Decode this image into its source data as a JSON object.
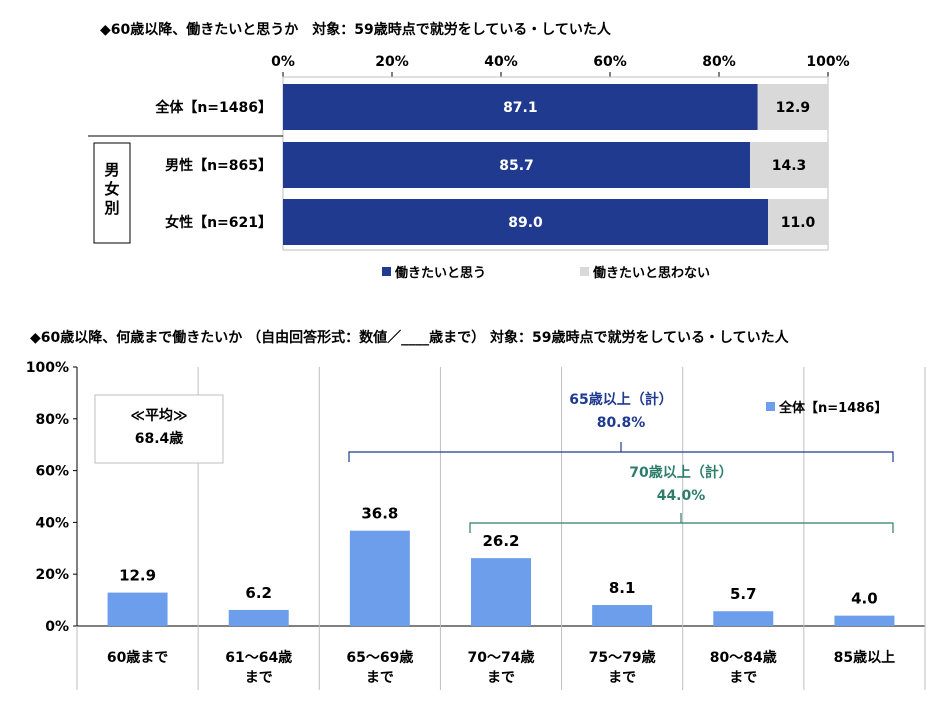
{
  "chart_data": [
    {
      "type": "bar",
      "orientation": "horizontal-stacked",
      "title": "◆60歳以降、働きたいと思うか　対象：59歳時点で就労をしている・していた人",
      "x_ticks": [
        "0%",
        "20%",
        "40%",
        "60%",
        "80%",
        "100%"
      ],
      "xlim": [
        0,
        100
      ],
      "group_label": "男女別",
      "categories": [
        "全体【n=1486】",
        "男性【n=865】",
        "女性【n=621】"
      ],
      "series": [
        {
          "name": "働きたいと思う",
          "values": [
            87.1,
            85.7,
            89.0
          ],
          "labels": [
            "87.1",
            "85.7",
            "89.0"
          ],
          "color": "#1F3A8F"
        },
        {
          "name": "働きたいと思わない",
          "values": [
            12.9,
            14.3,
            11.0
          ],
          "labels": [
            "12.9",
            "14.3",
            "11.0"
          ],
          "color": "#D9D9D9"
        }
      ],
      "legend_position": "bottom"
    },
    {
      "type": "bar",
      "title": "◆60歳以降、何歳まで働きたいか （自由回答形式：数値／____歳まで） 対象：59歳時点で就労をしている・していた人",
      "y_ticks": [
        "0%",
        "20%",
        "40%",
        "60%",
        "80%",
        "100%"
      ],
      "ylim": [
        0,
        100
      ],
      "categories": [
        "60歳まで",
        "61～64歳\nまで",
        "65～69歳\nまで",
        "70～74歳\nまで",
        "75～79歳\nまで",
        "80～84歳\nまで",
        "85歳以上"
      ],
      "series": [
        {
          "name": "全体【n=1486】",
          "values": [
            12.9,
            6.2,
            36.8,
            26.2,
            8.1,
            5.7,
            4.0
          ],
          "labels": [
            "12.9",
            "6.2",
            "36.8",
            "26.2",
            "8.1",
            "5.7",
            "4.0"
          ],
          "color": "#6D9EEB"
        }
      ],
      "legend_position": "top-right",
      "annotations": [
        {
          "label": "≪平均≫",
          "value": "68.4歳"
        },
        {
          "label": "65歳以上（計）",
          "value": "80.8%",
          "span": [
            2,
            6
          ],
          "color": "#1F3A8F"
        },
        {
          "label": "70歳以上（計）",
          "value": "44.0%",
          "span": [
            3,
            6
          ],
          "color": "#2E7D6B"
        }
      ]
    }
  ]
}
